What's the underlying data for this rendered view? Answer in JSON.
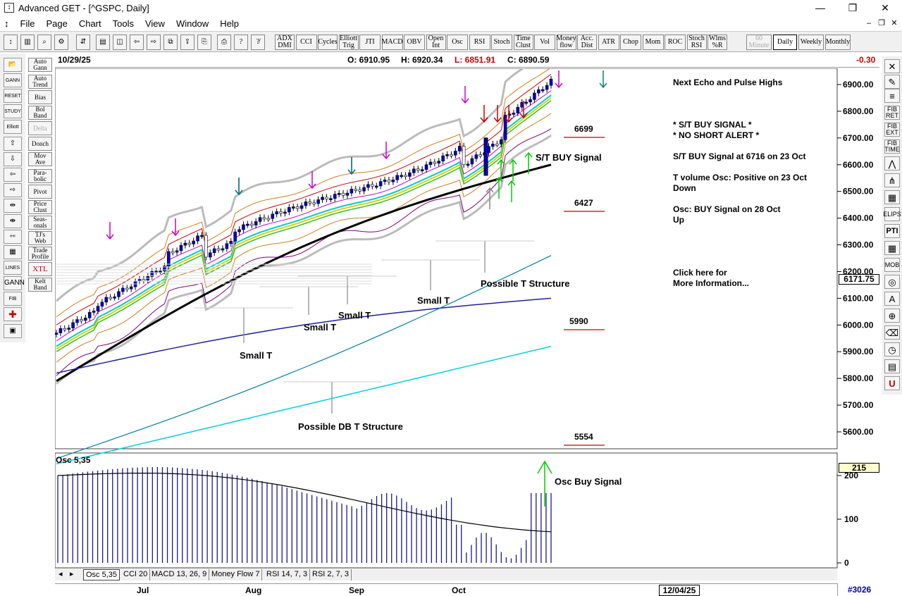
{
  "window": {
    "title": "Advanced GET - [^GSPC, Daily]",
    "minimize_icon": "minimize-icon",
    "restore_icon": "restore-icon",
    "close_icon": "close-icon"
  },
  "menu": [
    "File",
    "Page",
    "Chart",
    "Tools",
    "View",
    "Window",
    "Help"
  ],
  "toolbar": {
    "studies": [
      {
        "label": "ADX DMI",
        "name": "adx-dmi"
      },
      {
        "label": "CCI",
        "name": "cci"
      },
      {
        "label": "Cycles",
        "name": "cycles"
      },
      {
        "label": "Elliott Trig",
        "name": "elliott-trig"
      },
      {
        "label": "JTI",
        "name": "jti"
      },
      {
        "label": "MACD",
        "name": "macd"
      },
      {
        "label": "OBV",
        "name": "obv"
      },
      {
        "label": "Open Int",
        "name": "open-int"
      },
      {
        "label": "Osc",
        "name": "osc"
      },
      {
        "label": "RSI",
        "name": "rsi"
      },
      {
        "label": "Stoch",
        "name": "stoch"
      },
      {
        "label": "Time Clust",
        "name": "time-clust"
      },
      {
        "label": "Vol",
        "name": "vol"
      },
      {
        "label": "Money flow",
        "name": "money-flow"
      },
      {
        "label": "Acc. Dist",
        "name": "acc-dist"
      },
      {
        "label": "ATR",
        "name": "atr"
      },
      {
        "label": "Chop",
        "name": "chop"
      },
      {
        "label": "Mom",
        "name": "mom"
      },
      {
        "label": "ROC",
        "name": "roc"
      },
      {
        "label": "Stoch RSI",
        "name": "stoch-rsi"
      },
      {
        "label": "Wlms %R",
        "name": "wlms-r"
      }
    ],
    "timeframes": [
      {
        "label": "60 Minute",
        "name": "60-minute"
      },
      {
        "label": "Daily",
        "name": "daily"
      },
      {
        "label": "Weekly",
        "name": "weekly"
      },
      {
        "label": "Monthly",
        "name": "monthly"
      }
    ]
  },
  "left_labels": [
    "Auto Gann",
    "Auto Trend",
    "Bias",
    "Bol Band",
    "Delta",
    "Donch",
    "Mov Ave",
    "Para-bolic",
    "Pivot",
    "Price Clust",
    "Seas-onals",
    "TJ's Web",
    "Trade Profile",
    "XTL",
    "Kelt Band"
  ],
  "left_tools": [
    "open-icon",
    "gann-icon",
    "reset-icon",
    "study-icon",
    "elliott-icon",
    "up-arrow-icon",
    "down-arrow-icon",
    "left-arrow-icon",
    "right-arrow-icon",
    "bar-spacing-icon",
    "zoom-bars-icon",
    "compress-icon",
    "grid-icon",
    "lines-icon",
    "gann-fan-icon",
    "fib-icon",
    "crosshair-icon",
    "properties-icon"
  ],
  "left_tool_labels": {
    "reset": "RESET",
    "study": "STUDY",
    "elliott": "Elliott",
    "lines": "LINES",
    "gann": "GANN",
    "fib": "FIB"
  },
  "right_tools": [
    "FIB RET",
    "FIB EXT",
    "FIB TIME",
    "ELIPS",
    "PTI",
    "MOB"
  ],
  "info": {
    "date": "10/29/25",
    "open": "O: 6910.95",
    "high": "H: 6920.34",
    "low": "L: 6851.91",
    "close": "C: 6890.59",
    "change": "-0.30"
  },
  "annotations": {
    "next_echo": "Next Echo and Pulse Highs",
    "st_buy_signal_star": "* S/T BUY SIGNAL *",
    "no_short_alert": "* NO SHORT ALERT *",
    "st_buy_at": "S/T BUY Signal at 6716 on 23 Oct",
    "t_volume_1": "T volume Osc: Positive on 23 Oct",
    "t_volume_2": "Down",
    "osc_buy_1": "Osc: BUY Signal on 28 Oct",
    "osc_buy_2": "Up",
    "click_1": "Click here for",
    "click_2": "More Information...",
    "st_buy_label": "S/T BUY Signal",
    "possible_t": "Possible T Structure",
    "possible_db_t": "Possible DB T Structure",
    "small_t": "Small T",
    "level_6699": "6699",
    "level_6427": "6427",
    "level_5990": "5990",
    "level_5554": "5554",
    "osc_title": "Osc 5,35",
    "osc_buy_label": "Osc Buy Signal",
    "osc_value": "215",
    "last_price": "6171.75"
  },
  "price_axis": [
    "6900.00",
    "6800.00",
    "6700.00",
    "6600.00",
    "6500.00",
    "6400.00",
    "6300.00",
    "6200.00",
    "6100.00",
    "6000.00",
    "5900.00",
    "5800.00",
    "5700.00",
    "5600.00"
  ],
  "osc_axis": [
    "200",
    "100",
    "0"
  ],
  "tabs": [
    "Osc 5,35",
    "CCI 20",
    "MACD 13, 26, 9",
    "Money Flow 7",
    "RSI 14, 7, 3",
    "RSI 2, 7, 3"
  ],
  "months": [
    "Jul",
    "Aug",
    "Sep",
    "Oct"
  ],
  "end_date": "12/04/25",
  "page_id": "#3026",
  "colors": {
    "bull": "#0000cc",
    "bear": "#ffffff",
    "accent_red": "#cc0000",
    "arrow_green": "#00cc00",
    "arrow_magenta": "#cc00cc"
  }
}
